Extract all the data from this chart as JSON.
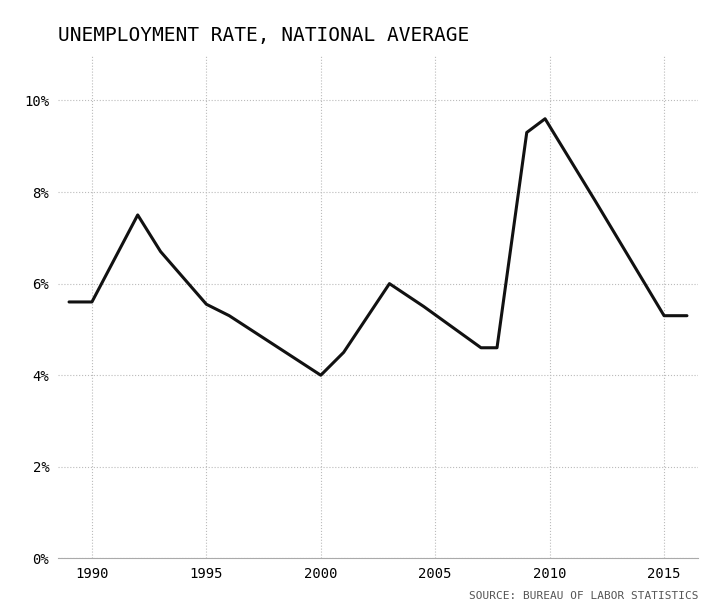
{
  "title": "UNEMPLOYMENT RATE, NATIONAL AVERAGE",
  "source_text": "SOURCE: BUREAU OF LABOR STATISTICS",
  "years": [
    1989,
    1990,
    1992,
    1993,
    1995,
    1996,
    2000,
    2001,
    2003,
    2004.5,
    2007,
    2007.7,
    2009,
    2009.8,
    2012,
    2015,
    2016
  ],
  "values": [
    5.6,
    5.6,
    7.5,
    6.7,
    5.55,
    5.3,
    4.0,
    4.5,
    6.0,
    5.5,
    4.6,
    4.6,
    9.3,
    9.6,
    7.8,
    5.3,
    5.3
  ],
  "xlim": [
    1988.5,
    2016.5
  ],
  "ylim": [
    0,
    11
  ],
  "yticks": [
    0,
    2,
    4,
    6,
    8,
    10
  ],
  "xticks": [
    1990,
    1995,
    2000,
    2005,
    2010,
    2015
  ],
  "line_color": "#111111",
  "line_width": 2.2,
  "grid_color": "#bbbbbb",
  "background_color": "#ffffff",
  "title_fontsize": 14,
  "tick_fontsize": 10,
  "source_fontsize": 8,
  "font_family": "monospace"
}
